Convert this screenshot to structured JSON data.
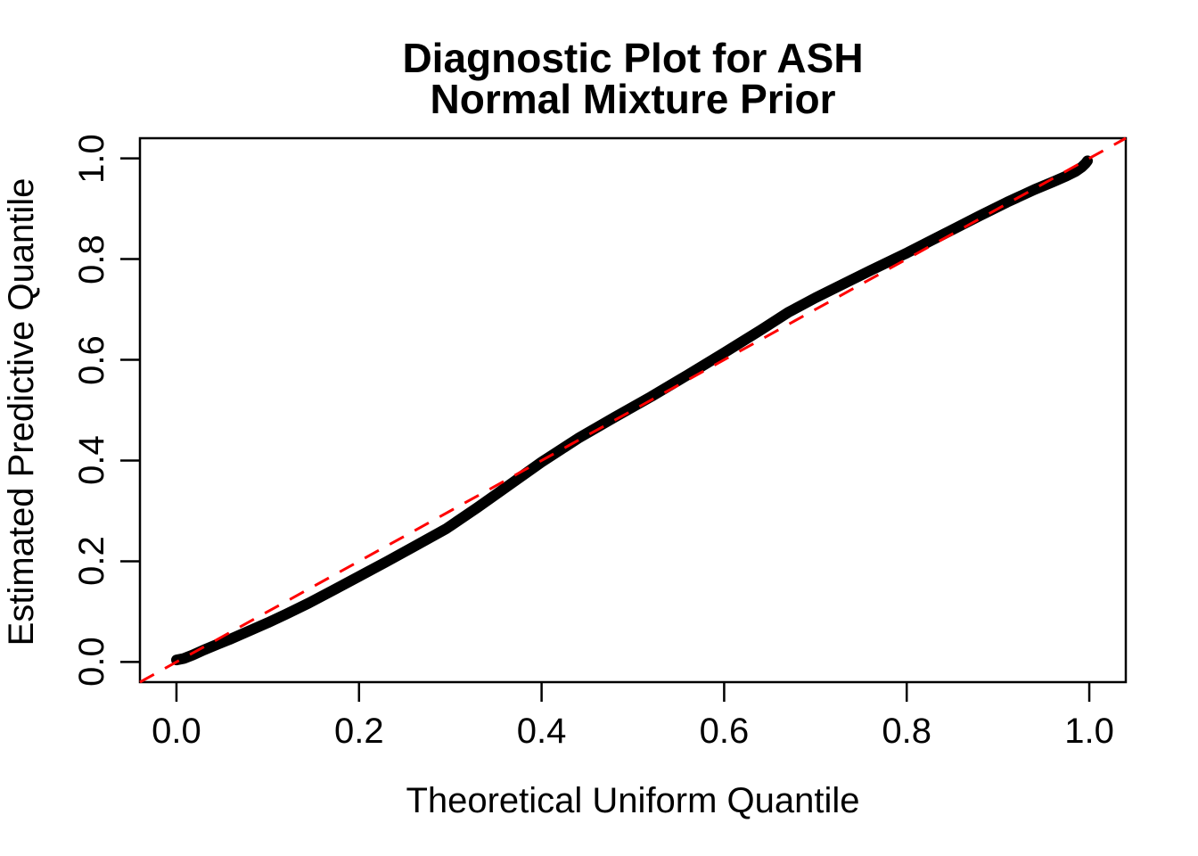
{
  "title": {
    "line1": "Diagnostic Plot for ASH",
    "line2": "Normal Mixture Prior"
  },
  "chart_data": {
    "type": "line",
    "title": "Diagnostic Plot for ASH — Normal Mixture Prior",
    "xlabel": "Theoretical Uniform Quantile",
    "ylabel": "Estimated Predictive Quantile",
    "xlim": [
      -0.04,
      1.04
    ],
    "ylim": [
      -0.04,
      1.04
    ],
    "grid": false,
    "legend": "none",
    "x_ticks": [
      0.0,
      0.2,
      0.4,
      0.6,
      0.8,
      1.0
    ],
    "x_tick_labels": [
      "0.0",
      "0.2",
      "0.4",
      "0.6",
      "0.8",
      "1.0"
    ],
    "y_ticks": [
      0.0,
      0.2,
      0.4,
      0.6,
      0.8,
      1.0
    ],
    "y_tick_labels": [
      "0.0",
      "0.2",
      "0.4",
      "0.6",
      "0.8",
      "1.0"
    ],
    "colors": {
      "quantile_curve": "#000000",
      "reference_diagonal": "#FF0000",
      "axis": "#000000",
      "background": "#FFFFFF"
    },
    "series": [
      {
        "name": "estimated-predictive-quantiles",
        "style": "thick-point-band",
        "color": "#000000",
        "x": [
          0.0,
          0.008,
          0.018,
          0.03,
          0.045,
          0.06,
          0.08,
          0.1,
          0.12,
          0.145,
          0.17,
          0.2,
          0.23,
          0.26,
          0.295,
          0.33,
          0.365,
          0.4,
          0.44,
          0.48,
          0.52,
          0.56,
          0.6,
          0.64,
          0.67,
          0.7,
          0.73,
          0.76,
          0.8,
          0.84,
          0.88,
          0.91,
          0.94,
          0.96,
          0.975,
          0.985,
          0.992,
          0.996,
          0.998
        ],
        "y": [
          0.004,
          0.007,
          0.014,
          0.024,
          0.035,
          0.046,
          0.062,
          0.078,
          0.095,
          0.117,
          0.141,
          0.17,
          0.199,
          0.229,
          0.264,
          0.307,
          0.352,
          0.397,
          0.444,
          0.486,
          0.527,
          0.57,
          0.614,
          0.659,
          0.694,
          0.723,
          0.75,
          0.777,
          0.812,
          0.849,
          0.886,
          0.913,
          0.938,
          0.953,
          0.965,
          0.974,
          0.983,
          0.99,
          0.995
        ]
      },
      {
        "name": "reference-diagonal",
        "style": "dashed-line",
        "color": "#FF0000",
        "x": [
          -0.04,
          1.04
        ],
        "y": [
          -0.04,
          1.04
        ]
      }
    ]
  }
}
